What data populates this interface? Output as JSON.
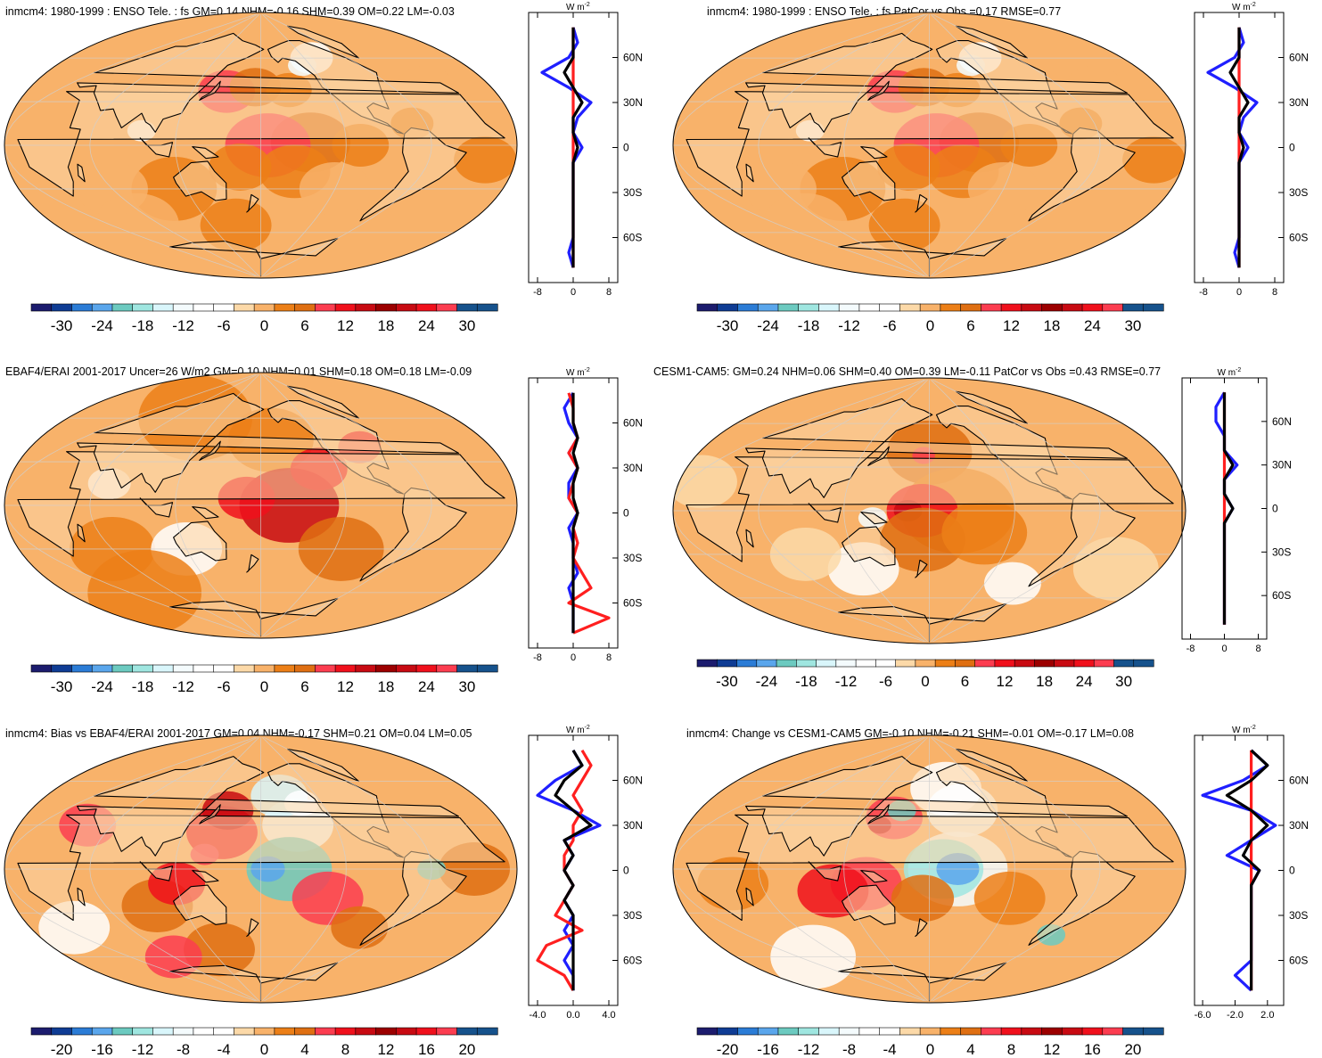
{
  "colors": {
    "land_fill": "#fcd5a5",
    "coast": "#000000",
    "grid": "#cfcfcf",
    "series": [
      "#1f1fff",
      "#ff1f1f",
      "#000000"
    ]
  },
  "palette": [
    "#1c1c6e",
    "#0f3c94",
    "#2b7cd6",
    "#5aa6ec",
    "#6ccac0",
    "#9fe6e0",
    "#d9f6fb",
    "#f4fbfd",
    "#ffffff",
    "#fcd9a8",
    "#f8b26a",
    "#ec7f17",
    "#df6f12",
    "#fc3d50",
    "#f0101c",
    "#c80a12",
    "#9c0000",
    "#c80a12",
    "#f0101c",
    "#e00a0a",
    "#16528c"
  ],
  "panels": [
    {
      "title": "inmcm4: 1980-1999 : ENSO Tele. : fs GM=0.14 NHM=-0.16 SHM=0.39 OM=0.22 LM=-0.03",
      "units_label": "W m",
      "units_sup": "-2",
      "colorbar_labels": [
        "-30",
        "-24",
        "-18",
        "-12",
        "-6",
        "0",
        "6",
        "12",
        "18",
        "24",
        "30"
      ],
      "profile_xticks": [
        "-8",
        "0",
        "8"
      ],
      "profile_yticks": [
        "60N",
        "30N",
        "0",
        "30S",
        "60S"
      ]
    },
    {
      "title": "inmcm4: 1980-1999 : ENSO Tele. : fs PatCor vs Obs =0.17 RMSE=0.77",
      "units_label": "W m",
      "units_sup": "-2",
      "colorbar_labels": [
        "-30",
        "-24",
        "-18",
        "-12",
        "-6",
        "0",
        "6",
        "12",
        "18",
        "24",
        "30"
      ],
      "profile_xticks": [
        "-8",
        "0",
        "8"
      ],
      "profile_yticks": [
        "60N",
        "30N",
        "0",
        "30S",
        "60S"
      ]
    },
    {
      "title": "EBAF4/ERAI 2001-2017 Uncer=26 W/m2 GM=0.10 NHM=0.01 SHM=0.18 OM=0.18 LM=-0.09",
      "units_label": "W m",
      "units_sup": "-2",
      "colorbar_labels": [
        "-30",
        "-24",
        "-18",
        "-12",
        "-6",
        "0",
        "6",
        "12",
        "18",
        "24",
        "30"
      ],
      "profile_xticks": [
        "-8",
        "0",
        "8"
      ],
      "profile_yticks": [
        "60N",
        "30N",
        "0",
        "30S",
        "60S"
      ]
    },
    {
      "title": "CESM1-CAM5: GM=0.24 NHM=0.06 SHM=0.40 OM=0.39 LM=-0.11 PatCor vs Obs =0.43 RMSE=0.77",
      "units_label": "W m",
      "units_sup": "-2",
      "colorbar_labels": [
        "-30",
        "-24",
        "-18",
        "-12",
        "-6",
        "0",
        "6",
        "12",
        "18",
        "24",
        "30"
      ],
      "profile_xticks": [
        "-8",
        "0",
        "8"
      ],
      "profile_yticks": [
        "60N",
        "30N",
        "0",
        "30S",
        "60S"
      ]
    },
    {
      "title": "inmcm4: Bias vs EBAF4/ERAI 2001-2017 GM=0.04 NHM=-0.17 SHM=0.21 OM=0.04 LM=0.05",
      "units_label": "W m",
      "units_sup": "-2",
      "colorbar_labels": [
        "-20",
        "-16",
        "-12",
        "-8",
        "-4",
        "0",
        "4",
        "8",
        "12",
        "16",
        "20"
      ],
      "profile_xticks": [
        "-4.0",
        "0.0",
        "4.0"
      ],
      "profile_yticks": [
        "60N",
        "30N",
        "0",
        "30S",
        "60S"
      ]
    },
    {
      "title": "inmcm4: Change vs CESM1-CAM5 GM=-0.10 NHM=-0.21 SHM=-0.01 OM=-0.17 LM=0.08",
      "units_label": "W m",
      "units_sup": "-2",
      "colorbar_labels": [
        "-20",
        "-16",
        "-12",
        "-8",
        "-4",
        "0",
        "4",
        "8",
        "12",
        "16",
        "20"
      ],
      "profile_xticks": [
        "-6.0",
        "-2.0",
        "2.0"
      ],
      "profile_yticks": [
        "60N",
        "30N",
        "0",
        "30S",
        "60S"
      ]
    }
  ],
  "chart_data": [
    {
      "type": "heatmap",
      "title": "inmcm4: 1980-1999 : ENSO Tele. : fs GM=0.14 NHM=-0.16 SHM=0.39 OM=0.22 LM=-0.03",
      "colorbar_ticks": [
        -30,
        -24,
        -18,
        -12,
        -6,
        0,
        6,
        12,
        18,
        24,
        30
      ],
      "profile": {
        "xlim": [
          -10,
          10
        ],
        "xticks": [
          -8,
          0,
          8
        ],
        "ylim": [
          -90,
          90
        ],
        "lat": [
          80,
          70,
          60,
          50,
          40,
          30,
          20,
          10,
          0,
          -10,
          -20,
          -30,
          -40,
          -50,
          -60,
          -70,
          -80
        ],
        "series": [
          {
            "color": "#1f1fff",
            "values": [
              0,
              1,
              -1,
              -7,
              -1,
              4,
              1,
              0,
              2,
              0,
              0,
              0,
              0,
              0,
              0,
              -1,
              0
            ]
          },
          {
            "color": "#ff1f1f",
            "values": [
              0,
              0,
              0,
              0,
              0,
              0,
              0,
              0,
              0,
              0,
              0,
              0,
              0,
              0,
              0,
              0,
              0
            ]
          },
          {
            "color": "#000000",
            "values": [
              0,
              0,
              0,
              -2,
              0,
              2,
              0,
              0,
              1,
              0,
              0,
              0,
              0,
              0,
              0,
              0,
              0
            ]
          }
        ]
      }
    },
    {
      "type": "heatmap",
      "title": "inmcm4: 1980-1999 : ENSO Tele. : fs PatCor vs Obs =0.17 RMSE=0.77",
      "colorbar_ticks": [
        -30,
        -24,
        -18,
        -12,
        -6,
        0,
        6,
        12,
        18,
        24,
        30
      ],
      "profile": {
        "xlim": [
          -10,
          10
        ],
        "xticks": [
          -8,
          0,
          8
        ],
        "ylim": [
          -90,
          90
        ],
        "lat": [
          80,
          70,
          60,
          50,
          40,
          30,
          20,
          10,
          0,
          -10,
          -20,
          -30,
          -40,
          -50,
          -60,
          -70,
          -80
        ],
        "series": [
          {
            "color": "#1f1fff",
            "values": [
              0,
              1,
              -1,
              -7,
              -1,
              4,
              1,
              0,
              2,
              0,
              0,
              0,
              0,
              0,
              0,
              -1,
              0
            ]
          },
          {
            "color": "#ff1f1f",
            "values": [
              0,
              0,
              0,
              0,
              0,
              0,
              0,
              0,
              0,
              0,
              0,
              0,
              0,
              0,
              0,
              0,
              0
            ]
          },
          {
            "color": "#000000",
            "values": [
              0,
              0,
              0,
              -2,
              0,
              2,
              0,
              0,
              1,
              0,
              0,
              0,
              0,
              0,
              0,
              0,
              0
            ]
          }
        ]
      }
    },
    {
      "type": "heatmap",
      "title": "EBAF4/ERAI 2001-2017 Uncer=26 W/m2 GM=0.10 NHM=0.01 SHM=0.18 OM=0.18 LM=-0.09",
      "colorbar_ticks": [
        -30,
        -24,
        -18,
        -12,
        -6,
        0,
        6,
        12,
        18,
        24,
        30
      ],
      "profile": {
        "xlim": [
          -10,
          10
        ],
        "xticks": [
          -8,
          0,
          8
        ],
        "ylim": [
          -90,
          90
        ],
        "lat": [
          80,
          70,
          60,
          50,
          40,
          30,
          20,
          10,
          0,
          -10,
          -20,
          -30,
          -40,
          -50,
          -60,
          -70,
          -80
        ],
        "series": [
          {
            "color": "#1f1fff",
            "values": [
              0,
              -2,
              -1,
              1,
              -1,
              1,
              -1,
              -1,
              1,
              -1,
              0,
              0,
              1,
              -1,
              0,
              0,
              0
            ]
          },
          {
            "color": "#ff1f1f",
            "values": [
              -1,
              0,
              0,
              1,
              -1,
              1,
              0,
              -1,
              1,
              0,
              1,
              0,
              2,
              4,
              -1,
              8,
              0
            ]
          },
          {
            "color": "#000000",
            "values": [
              0,
              0,
              0,
              1,
              0,
              1,
              0,
              0,
              1,
              0,
              0,
              0,
              0,
              0,
              0,
              0,
              0
            ]
          }
        ]
      }
    },
    {
      "type": "heatmap",
      "title": "CESM1-CAM5: GM=0.24 NHM=0.06 SHM=0.40 OM=0.39 LM=-0.11 PatCor vs Obs =0.43 RMSE=0.77",
      "colorbar_ticks": [
        -30,
        -24,
        -18,
        -12,
        -6,
        0,
        6,
        12,
        18,
        24,
        30
      ],
      "profile": {
        "xlim": [
          -10,
          10
        ],
        "xticks": [
          -8,
          0,
          8
        ],
        "ylim": [
          -90,
          90
        ],
        "lat": [
          80,
          70,
          60,
          50,
          40,
          30,
          20,
          10,
          0,
          -10,
          -20,
          -30,
          -40,
          -50,
          -60,
          -70,
          -80
        ],
        "series": [
          {
            "color": "#1f1fff",
            "values": [
              0,
              -2,
              -2,
              0,
              0,
              3,
              0,
              0,
              2,
              0,
              0,
              0,
              0,
              0,
              0,
              0,
              0
            ]
          },
          {
            "color": "#ff1f1f",
            "values": [
              0,
              0,
              0,
              0,
              0,
              0,
              0,
              0,
              0,
              0,
              0,
              0,
              0,
              0,
              0,
              0,
              0
            ]
          },
          {
            "color": "#000000",
            "values": [
              0,
              0,
              0,
              0,
              0,
              2,
              0,
              0,
              2,
              0,
              0,
              0,
              0,
              0,
              0,
              0,
              0
            ]
          }
        ]
      }
    },
    {
      "type": "heatmap",
      "title": "inmcm4: Bias vs EBAF4/ERAI 2001-2017 GM=0.04 NHM=-0.17 SHM=0.21 OM=0.04 LM=0.05",
      "colorbar_ticks": [
        -20,
        -16,
        -12,
        -8,
        -4,
        0,
        4,
        8,
        12,
        16,
        20
      ],
      "profile": {
        "xlim": [
          -5,
          5
        ],
        "xticks": [
          -4,
          0,
          4
        ],
        "ylim": [
          -90,
          90
        ],
        "lat": [
          80,
          70,
          60,
          50,
          40,
          30,
          20,
          10,
          0,
          -10,
          -20,
          -30,
          -40,
          -50,
          -60,
          -70,
          -80
        ],
        "series": [
          {
            "color": "#1f1fff",
            "values": [
              0,
              1,
              -2,
              -4,
              0,
              3,
              -1,
              0,
              -1,
              0,
              -1,
              0,
              -1,
              0,
              -1,
              0,
              0
            ]
          },
          {
            "color": "#ff1f1f",
            "values": [
              1,
              2,
              1,
              0,
              1,
              0,
              0,
              -1,
              -1,
              0,
              -1,
              -2,
              1,
              -3,
              -4,
              -1,
              0
            ]
          },
          {
            "color": "#000000",
            "values": [
              0,
              1,
              -1,
              -2,
              0,
              2,
              -1,
              0,
              -1,
              0,
              -1,
              0,
              0,
              0,
              0,
              0,
              0
            ]
          }
        ]
      }
    },
    {
      "type": "heatmap",
      "title": "inmcm4: Change vs CESM1-CAM5 GM=-0.10 NHM=-0.21 SHM=-0.01 OM=-0.17 LM=0.08",
      "colorbar_ticks": [
        -20,
        -16,
        -12,
        -8,
        -4,
        0,
        4,
        8,
        12,
        16,
        20
      ],
      "profile": {
        "xlim": [
          -7,
          4
        ],
        "xticks": [
          -6,
          -2,
          2
        ],
        "ylim": [
          -90,
          90
        ],
        "lat": [
          80,
          70,
          60,
          50,
          40,
          30,
          20,
          10,
          0,
          -10,
          -20,
          -30,
          -40,
          -50,
          -60,
          -70,
          -80
        ],
        "series": [
          {
            "color": "#1f1fff",
            "values": [
              0,
              2,
              -1,
              -6,
              0,
              3,
              0,
              -3,
              1,
              0,
              0,
              0,
              0,
              0,
              0,
              -2,
              0
            ]
          },
          {
            "color": "#ff1f1f",
            "values": [
              0,
              0,
              0,
              0,
              0,
              0,
              0,
              0,
              0,
              0,
              0,
              0,
              0,
              0,
              0,
              0,
              0
            ]
          },
          {
            "color": "#000000",
            "values": [
              0,
              2,
              0,
              -3,
              0,
              2,
              0,
              -1,
              1,
              0,
              0,
              0,
              0,
              0,
              0,
              0,
              0
            ]
          }
        ]
      }
    }
  ]
}
